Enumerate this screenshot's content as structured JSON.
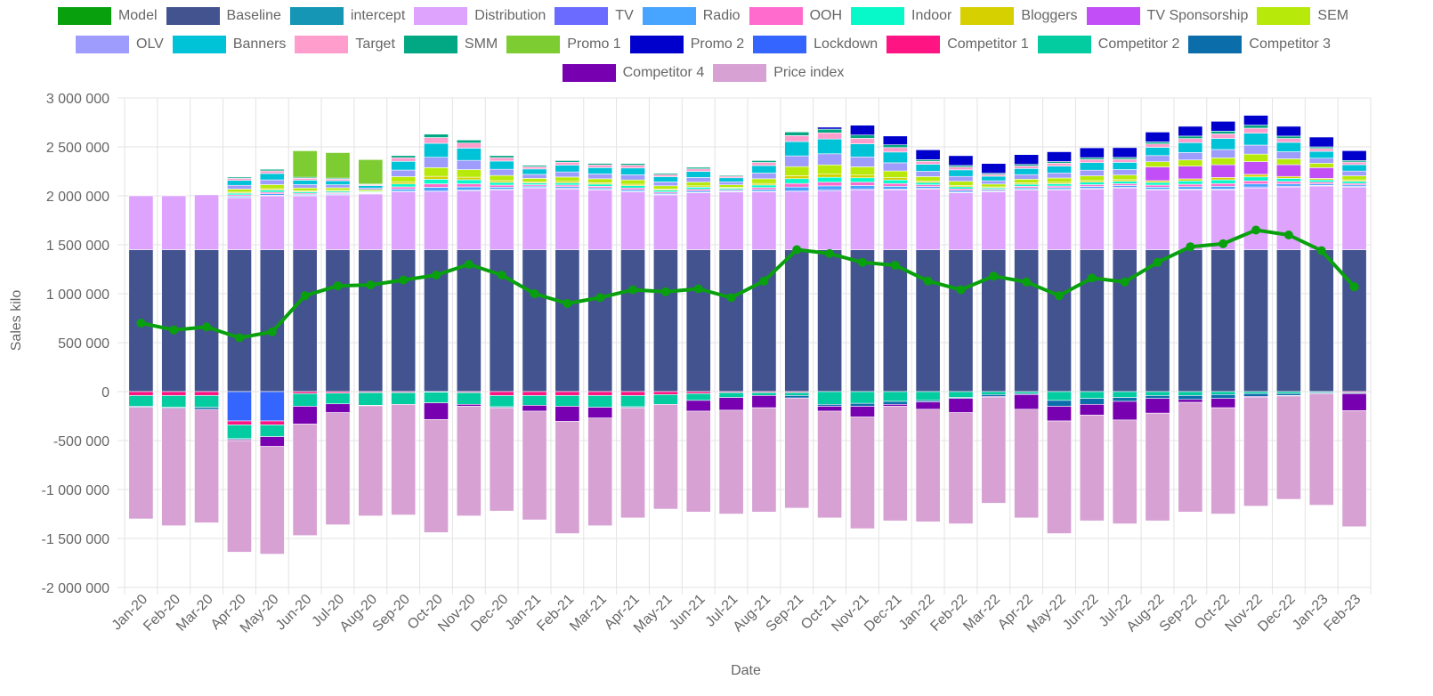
{
  "chart_data": {
    "type": "bar",
    "stacked": true,
    "xlabel": "Date",
    "ylabel": "Sales kilo",
    "ylim": [
      -2000000,
      3000000
    ],
    "grid": true,
    "legend_position": "top",
    "value_multiplier": 1000,
    "y_ticks": [
      {
        "value": 3000000,
        "label": "3 000 000"
      },
      {
        "value": 2500000,
        "label": "2 500 000"
      },
      {
        "value": 2000000,
        "label": "2 000 000"
      },
      {
        "value": 1500000,
        "label": "1 500 000"
      },
      {
        "value": 1000000,
        "label": "1 000 000"
      },
      {
        "value": 500000,
        "label": "500 000"
      },
      {
        "value": 0,
        "label": "0"
      },
      {
        "value": -500000,
        "label": "-500 000"
      },
      {
        "value": -1000000,
        "label": "-1 000 000"
      },
      {
        "value": -1500000,
        "label": "-1 500 000"
      },
      {
        "value": -2000000,
        "label": "-2 000 000"
      }
    ],
    "categories": [
      "Jan-20",
      "Feb-20",
      "Mar-20",
      "Apr-20",
      "May-20",
      "Jun-20",
      "Jul-20",
      "Aug-20",
      "Sep-20",
      "Oct-20",
      "Nov-20",
      "Dec-20",
      "Jan-21",
      "Feb-21",
      "Mar-21",
      "Apr-21",
      "May-21",
      "Jun-21",
      "Jul-21",
      "Aug-21",
      "Sep-21",
      "Oct-21",
      "Nov-21",
      "Dec-21",
      "Jan-22",
      "Feb-22",
      "Mar-22",
      "Apr-22",
      "May-22",
      "Jun-22",
      "Jul-22",
      "Aug-22",
      "Sep-22",
      "Oct-22",
      "Nov-22",
      "Dec-22",
      "Jan-23",
      "Feb-23"
    ],
    "line_series": {
      "name": "Model",
      "color": "#09a00e",
      "values": [
        700,
        630,
        660,
        550,
        610,
        980,
        1080,
        1090,
        1140,
        1190,
        1300,
        1190,
        1000,
        900,
        960,
        1040,
        1020,
        1050,
        960,
        1130,
        1450,
        1410,
        1320,
        1290,
        1130,
        1040,
        1180,
        1120,
        980,
        1160,
        1120,
        1320,
        1480,
        1510,
        1650,
        1600,
        1440,
        1070
      ]
    },
    "series": [
      {
        "name": "Baseline",
        "color": "#42538f",
        "values": [
          1450,
          1450,
          1450,
          1450,
          1450,
          1450,
          1450,
          1450,
          1450,
          1450,
          1450,
          1450,
          1450,
          1450,
          1450,
          1450,
          1450,
          1450,
          1450,
          1450,
          1450,
          1450,
          1450,
          1450,
          1450,
          1450,
          1450,
          1450,
          1450,
          1450,
          1450,
          1450,
          1450,
          1450,
          1450,
          1450,
          1450,
          1450
        ]
      },
      {
        "name": "intercept",
        "color": "#1496b4",
        "values": [
          0,
          0,
          0,
          0,
          0,
          0,
          0,
          0,
          0,
          0,
          0,
          0,
          0,
          0,
          0,
          0,
          0,
          0,
          0,
          0,
          0,
          0,
          0,
          0,
          0,
          0,
          0,
          0,
          0,
          0,
          0,
          0,
          0,
          0,
          0,
          0,
          0,
          0
        ]
      },
      {
        "name": "Distribution",
        "color": "#dda3fd",
        "values": [
          550,
          550,
          560,
          530,
          550,
          550,
          560,
          570,
          590,
          590,
          600,
          610,
          630,
          620,
          610,
          590,
          560,
          580,
          590,
          590,
          590,
          600,
          610,
          610,
          620,
          580,
          590,
          610,
          610,
          620,
          630,
          610,
          610,
          610,
          630,
          640,
          650,
          640
        ]
      },
      {
        "name": "TV",
        "color": "#6b6bff",
        "values": [
          0,
          0,
          0,
          4,
          5,
          4,
          3,
          2,
          7,
          12,
          10,
          7,
          5,
          6,
          5,
          6,
          4,
          5,
          3,
          6,
          12,
          13,
          11,
          9,
          6,
          6,
          4,
          5,
          6,
          6,
          6,
          7,
          8,
          9,
          10,
          8,
          6,
          5
        ]
      },
      {
        "name": "Radio",
        "color": "#47a4ff",
        "values": [
          0,
          0,
          0,
          13,
          16,
          11,
          10,
          6,
          22,
          35,
          31,
          21,
          14,
          17,
          16,
          17,
          13,
          16,
          10,
          19,
          37,
          38,
          34,
          28,
          18,
          17,
          11,
          16,
          17,
          19,
          19,
          21,
          25,
          28,
          31,
          24,
          17,
          16
        ]
      },
      {
        "name": "OOH",
        "color": "#ff6bcc",
        "values": [
          0,
          0,
          0,
          13,
          16,
          11,
          10,
          6,
          22,
          35,
          31,
          21,
          14,
          17,
          16,
          17,
          13,
          16,
          10,
          19,
          37,
          38,
          34,
          28,
          18,
          17,
          11,
          16,
          17,
          19,
          19,
          21,
          25,
          28,
          31,
          24,
          17,
          16
        ]
      },
      {
        "name": "Indoor",
        "color": "#07f9c9",
        "values": [
          0,
          0,
          0,
          17,
          22,
          15,
          14,
          8,
          30,
          47,
          42,
          28,
          18,
          23,
          22,
          23,
          18,
          21,
          14,
          26,
          49,
          50,
          45,
          37,
          24,
          22,
          15,
          21,
          23,
          26,
          25,
          28,
          34,
          38,
          41,
          32,
          23,
          22
        ]
      },
      {
        "name": "Bloggers",
        "color": "#d6d000",
        "values": [
          0,
          0,
          0,
          10,
          14,
          10,
          9,
          5,
          19,
          30,
          26,
          18,
          12,
          15,
          14,
          15,
          11,
          13,
          9,
          16,
          31,
          32,
          28,
          23,
          15,
          14,
          10,
          13,
          15,
          16,
          16,
          18,
          21,
          24,
          26,
          20,
          15,
          14
        ]
      },
      {
        "name": "TV Sponsorship",
        "color": "#c24ef8",
        "values": [
          0,
          0,
          0,
          0,
          0,
          0,
          0,
          0,
          0,
          0,
          0,
          0,
          0,
          0,
          0,
          0,
          0,
          0,
          0,
          0,
          0,
          0,
          0,
          0,
          0,
          0,
          0,
          0,
          0,
          0,
          0,
          140,
          130,
          130,
          130,
          120,
          110,
          0
        ]
      },
      {
        "name": "SEM",
        "color": "#b7ea0a",
        "values": [
          0,
          0,
          0,
          32,
          41,
          29,
          26,
          15,
          56,
          89,
          78,
          53,
          35,
          44,
          41,
          44,
          33,
          39,
          26,
          48,
          92,
          95,
          84,
          69,
          45,
          42,
          29,
          39,
          44,
          48,
          47,
          53,
          63,
          71,
          77,
          60,
          44,
          41
        ]
      },
      {
        "name": "OLV",
        "color": "#9e9cfc",
        "values": [
          0,
          0,
          0,
          38,
          49,
          34,
          31,
          18,
          67,
          106,
          94,
          63,
          41,
          52,
          49,
          52,
          40,
          47,
          31,
          58,
          110,
          113,
          101,
          83,
          54,
          50,
          34,
          47,
          52,
          58,
          56,
          63,
          76,
          85,
          92,
          72,
          52,
          49
        ]
      },
      {
        "name": "Banners",
        "color": "#00c3d7",
        "values": [
          0,
          0,
          0,
          50,
          65,
          46,
          41,
          24,
          89,
          142,
          125,
          84,
          55,
          70,
          65,
          70,
          53,
          62,
          41,
          77,
          146,
          151,
          134,
          110,
          72,
          67,
          46,
          62,
          70,
          77,
          74,
          84,
          101,
          113,
          122,
          96,
          70,
          65
        ]
      },
      {
        "name": "Target",
        "color": "#ff9dcd",
        "values": [
          0,
          0,
          0,
          21,
          27,
          19,
          17,
          10,
          37,
          59,
          52,
          35,
          23,
          29,
          27,
          29,
          22,
          26,
          17,
          32,
          61,
          63,
          56,
          46,
          30,
          28,
          19,
          26,
          29,
          32,
          31,
          35,
          42,
          47,
          51,
          40,
          29,
          27
        ]
      },
      {
        "name": "SMM",
        "color": "#02a883",
        "values": [
          0,
          0,
          0,
          13,
          16,
          11,
          10,
          6,
          22,
          35,
          31,
          21,
          14,
          17,
          16,
          17,
          13,
          16,
          10,
          19,
          37,
          38,
          34,
          28,
          18,
          17,
          11,
          16,
          17,
          19,
          19,
          21,
          25,
          28,
          31,
          24,
          17,
          16
        ]
      },
      {
        "name": "Promo 1",
        "color": "#7dcc31",
        "values": [
          0,
          0,
          0,
          0,
          0,
          270,
          260,
          250,
          0,
          0,
          0,
          0,
          0,
          0,
          0,
          0,
          0,
          0,
          0,
          0,
          0,
          0,
          0,
          0,
          0,
          0,
          0,
          0,
          0,
          0,
          0,
          0,
          0,
          0,
          0,
          0,
          0,
          0
        ]
      },
      {
        "name": "Promo 2",
        "color": "#0000cc",
        "values": [
          0,
          0,
          0,
          0,
          0,
          0,
          0,
          0,
          0,
          0,
          0,
          0,
          0,
          0,
          0,
          0,
          0,
          0,
          0,
          0,
          0,
          20,
          100,
          90,
          100,
          100,
          100,
          100,
          100,
          100,
          100,
          100,
          100,
          100,
          100,
          100,
          100,
          100
        ]
      },
      {
        "name": "Lockdown",
        "color": "#3466ff",
        "values": [
          0,
          0,
          0,
          -300,
          -300,
          0,
          0,
          0,
          0,
          0,
          0,
          0,
          0,
          0,
          0,
          0,
          0,
          0,
          0,
          0,
          0,
          0,
          0,
          0,
          0,
          0,
          0,
          0,
          0,
          0,
          0,
          0,
          0,
          0,
          0,
          0,
          0,
          0
        ]
      },
      {
        "name": "Competitor 1",
        "color": "#ff1483",
        "values": [
          -40,
          -40,
          -40,
          -40,
          -40,
          -20,
          -15,
          -10,
          -10,
          -5,
          -10,
          -40,
          -40,
          -40,
          -40,
          -40,
          -30,
          -20,
          -10,
          -10,
          -10,
          0,
          0,
          0,
          0,
          0,
          0,
          0,
          0,
          0,
          0,
          0,
          0,
          0,
          0,
          0,
          0,
          -10
        ]
      },
      {
        "name": "Competitor 2",
        "color": "#03cca0",
        "values": [
          -110,
          -120,
          -120,
          -140,
          -120,
          -130,
          -110,
          -130,
          -120,
          -110,
          -120,
          -115,
          -100,
          -110,
          -120,
          -115,
          -100,
          -70,
          -50,
          -30,
          -30,
          -130,
          -120,
          -100,
          -90,
          -60,
          -30,
          -20,
          -90,
          -70,
          -60,
          -40,
          -40,
          -30,
          -20,
          -20,
          -10,
          -10
        ]
      },
      {
        "name": "Competitor 3",
        "color": "#0b6eab",
        "values": [
          -10,
          -10,
          -20,
          -10,
          0,
          0,
          0,
          -5,
          0,
          0,
          0,
          -10,
          0,
          0,
          0,
          -10,
          0,
          0,
          0,
          0,
          -25,
          -20,
          -30,
          -30,
          -15,
          -10,
          -20,
          -10,
          -60,
          -60,
          -40,
          -30,
          -40,
          -40,
          -30,
          -20,
          -10,
          0
        ]
      },
      {
        "name": "Competitor 4",
        "color": "#7700b0",
        "values": [
          0,
          0,
          0,
          -10,
          -100,
          -180,
          -90,
          0,
          0,
          -170,
          -20,
          0,
          -60,
          -155,
          -110,
          0,
          0,
          -110,
          -130,
          -125,
          0,
          -50,
          -110,
          -20,
          -75,
          -145,
          -10,
          -150,
          -150,
          -110,
          -190,
          -150,
          -30,
          -95,
          -10,
          -5,
          0,
          -175
        ]
      },
      {
        "name": "Price index",
        "color": "#d7a1d4",
        "values": [
          -1140,
          -1200,
          -1160,
          -1140,
          -1100,
          -1140,
          -1145,
          -1125,
          -1130,
          -1155,
          -1120,
          -1055,
          -1110,
          -1145,
          -1100,
          -1125,
          -1070,
          -1030,
          -1060,
          -1065,
          -1125,
          -1090,
          -1140,
          -1170,
          -1150,
          -1135,
          -1080,
          -1110,
          -1150,
          -1080,
          -1060,
          -1100,
          -1120,
          -1085,
          -1110,
          -1055,
          -1140,
          -1185
        ]
      }
    ]
  }
}
